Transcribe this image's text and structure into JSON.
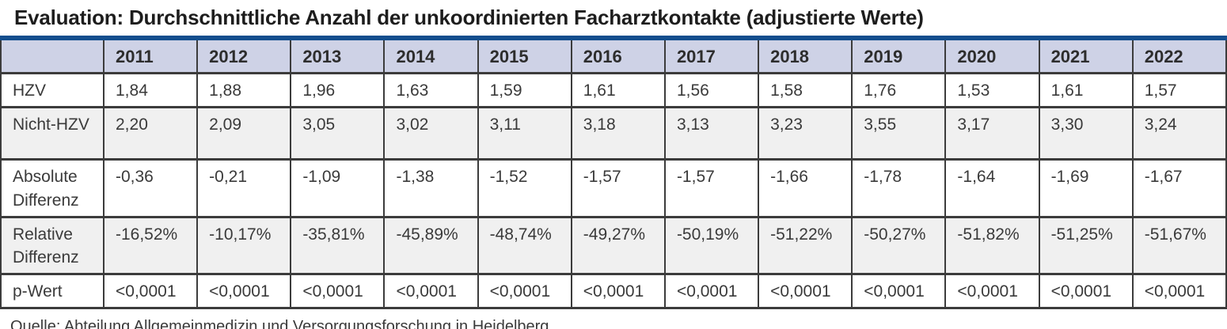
{
  "title": "Evaluation: Durchschnittliche Anzahl der unkoordinierten Facharztkontakte (adjustierte Werte)",
  "source": "Quelle: Abteilung Allgemeinmedizin und Versorgungsforschung in Heidelberg.",
  "colors": {
    "header_band": "#ced2e6",
    "top_rule": "#134e8d",
    "grid_line": "#3c3c3c",
    "alt_row_bg": "#f0f0f0",
    "text": "#3a3a3a"
  },
  "chart_data": {
    "type": "table",
    "title": "Evaluation: Durchschnittliche Anzahl der unkoordinierten Facharztkontakte (adjustierte Werte)",
    "columns": [
      "2011",
      "2012",
      "2013",
      "2014",
      "2015",
      "2016",
      "2017",
      "2018",
      "2019",
      "2020",
      "2021",
      "2022"
    ],
    "rows": [
      {
        "label": "HZV",
        "values": [
          "1,84",
          "1,88",
          "1,96",
          "1,63",
          "1,59",
          "1,61",
          "1,56",
          "1,58",
          "1,76",
          "1,53",
          "1,61",
          "1,57"
        ]
      },
      {
        "label": "Nicht-HZV",
        "values": [
          "2,20",
          "2,09",
          "3,05",
          "3,02",
          "3,11",
          "3,18",
          "3,13",
          "3,23",
          "3,55",
          "3,17",
          "3,30",
          "3,24"
        ]
      },
      {
        "label": "Absolute Differenz",
        "values": [
          "-0,36",
          "-0,21",
          "-1,09",
          "-1,38",
          "-1,52",
          "-1,57",
          "-1,57",
          "-1,66",
          "-1,78",
          "-1,64",
          "-1,69",
          "-1,67"
        ]
      },
      {
        "label": "Relative Differenz",
        "values": [
          "-16,52%",
          "-10,17%",
          "-35,81%",
          "-45,89%",
          "-48,74%",
          "-49,27%",
          "-50,19%",
          "-51,22%",
          "-50,27%",
          "-51,82%",
          "-51,25%",
          "-51,67%"
        ]
      },
      {
        "label": "p-Wert",
        "values": [
          "<0,0001",
          "<0,0001",
          "<0,0001",
          "<0,0001",
          "<0,0001",
          "<0,0001",
          "<0,0001",
          "<0,0001",
          "<0,0001",
          "<0,0001",
          "<0,0001",
          "<0,0001"
        ]
      }
    ],
    "source": "Quelle: Abteilung Allgemeinmedizin und Versorgungsforschung in Heidelberg."
  }
}
